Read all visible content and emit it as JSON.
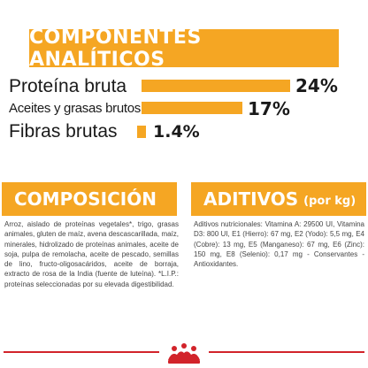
{
  "analytic_components": {
    "title": "COMPONENTES ANALÍTICOS",
    "rows": [
      {
        "label": "Proteína bruta",
        "value": "24%",
        "percent": 24
      },
      {
        "label": "Aceites y grasas brutos",
        "value": "17%",
        "percent": 17
      },
      {
        "label": "Fibras brutas",
        "value": "1.4%",
        "percent": 1.4
      }
    ]
  },
  "composition": {
    "title": "COMPOSICIÓN",
    "text": "Arroz, aislado de proteínas vegetales*, trigo, grasas animales, gluten de maíz, avena descascarillada, maíz, minerales, hidrolizado de proteínas animales, aceite de soja, pulpa de remolacha, aceite de pescado, semillas de lino, fructo-oligosacáridos, aceite de borraja, extracto de rosa de la India (fuente de luteína). *L.I.P.: proteínas seleccionadas por su elevada digestibilidad."
  },
  "additives": {
    "title": "ADITIVOS",
    "subtitle": "(por kg)",
    "text": "Aditivos nutricionales: Vitamina A: 29500 UI, Vitamina D3: 800 UI, E1 (Hierro): 67 mg, E2 (Yodo): 5,5 mg, E4 (Cobre): 13 mg, E5 (Manganeso): 67 mg, E6 (Zinc): 150 mg, E8 (Selenio): 0,17 mg - Conservantes - Antioxidantes."
  },
  "footer": {
    "logo_icon": "royal-canin-crown-logo",
    "accent_color": "#d2232a"
  },
  "colors": {
    "banner": "#f5a623",
    "text": "#1a1a1a"
  }
}
